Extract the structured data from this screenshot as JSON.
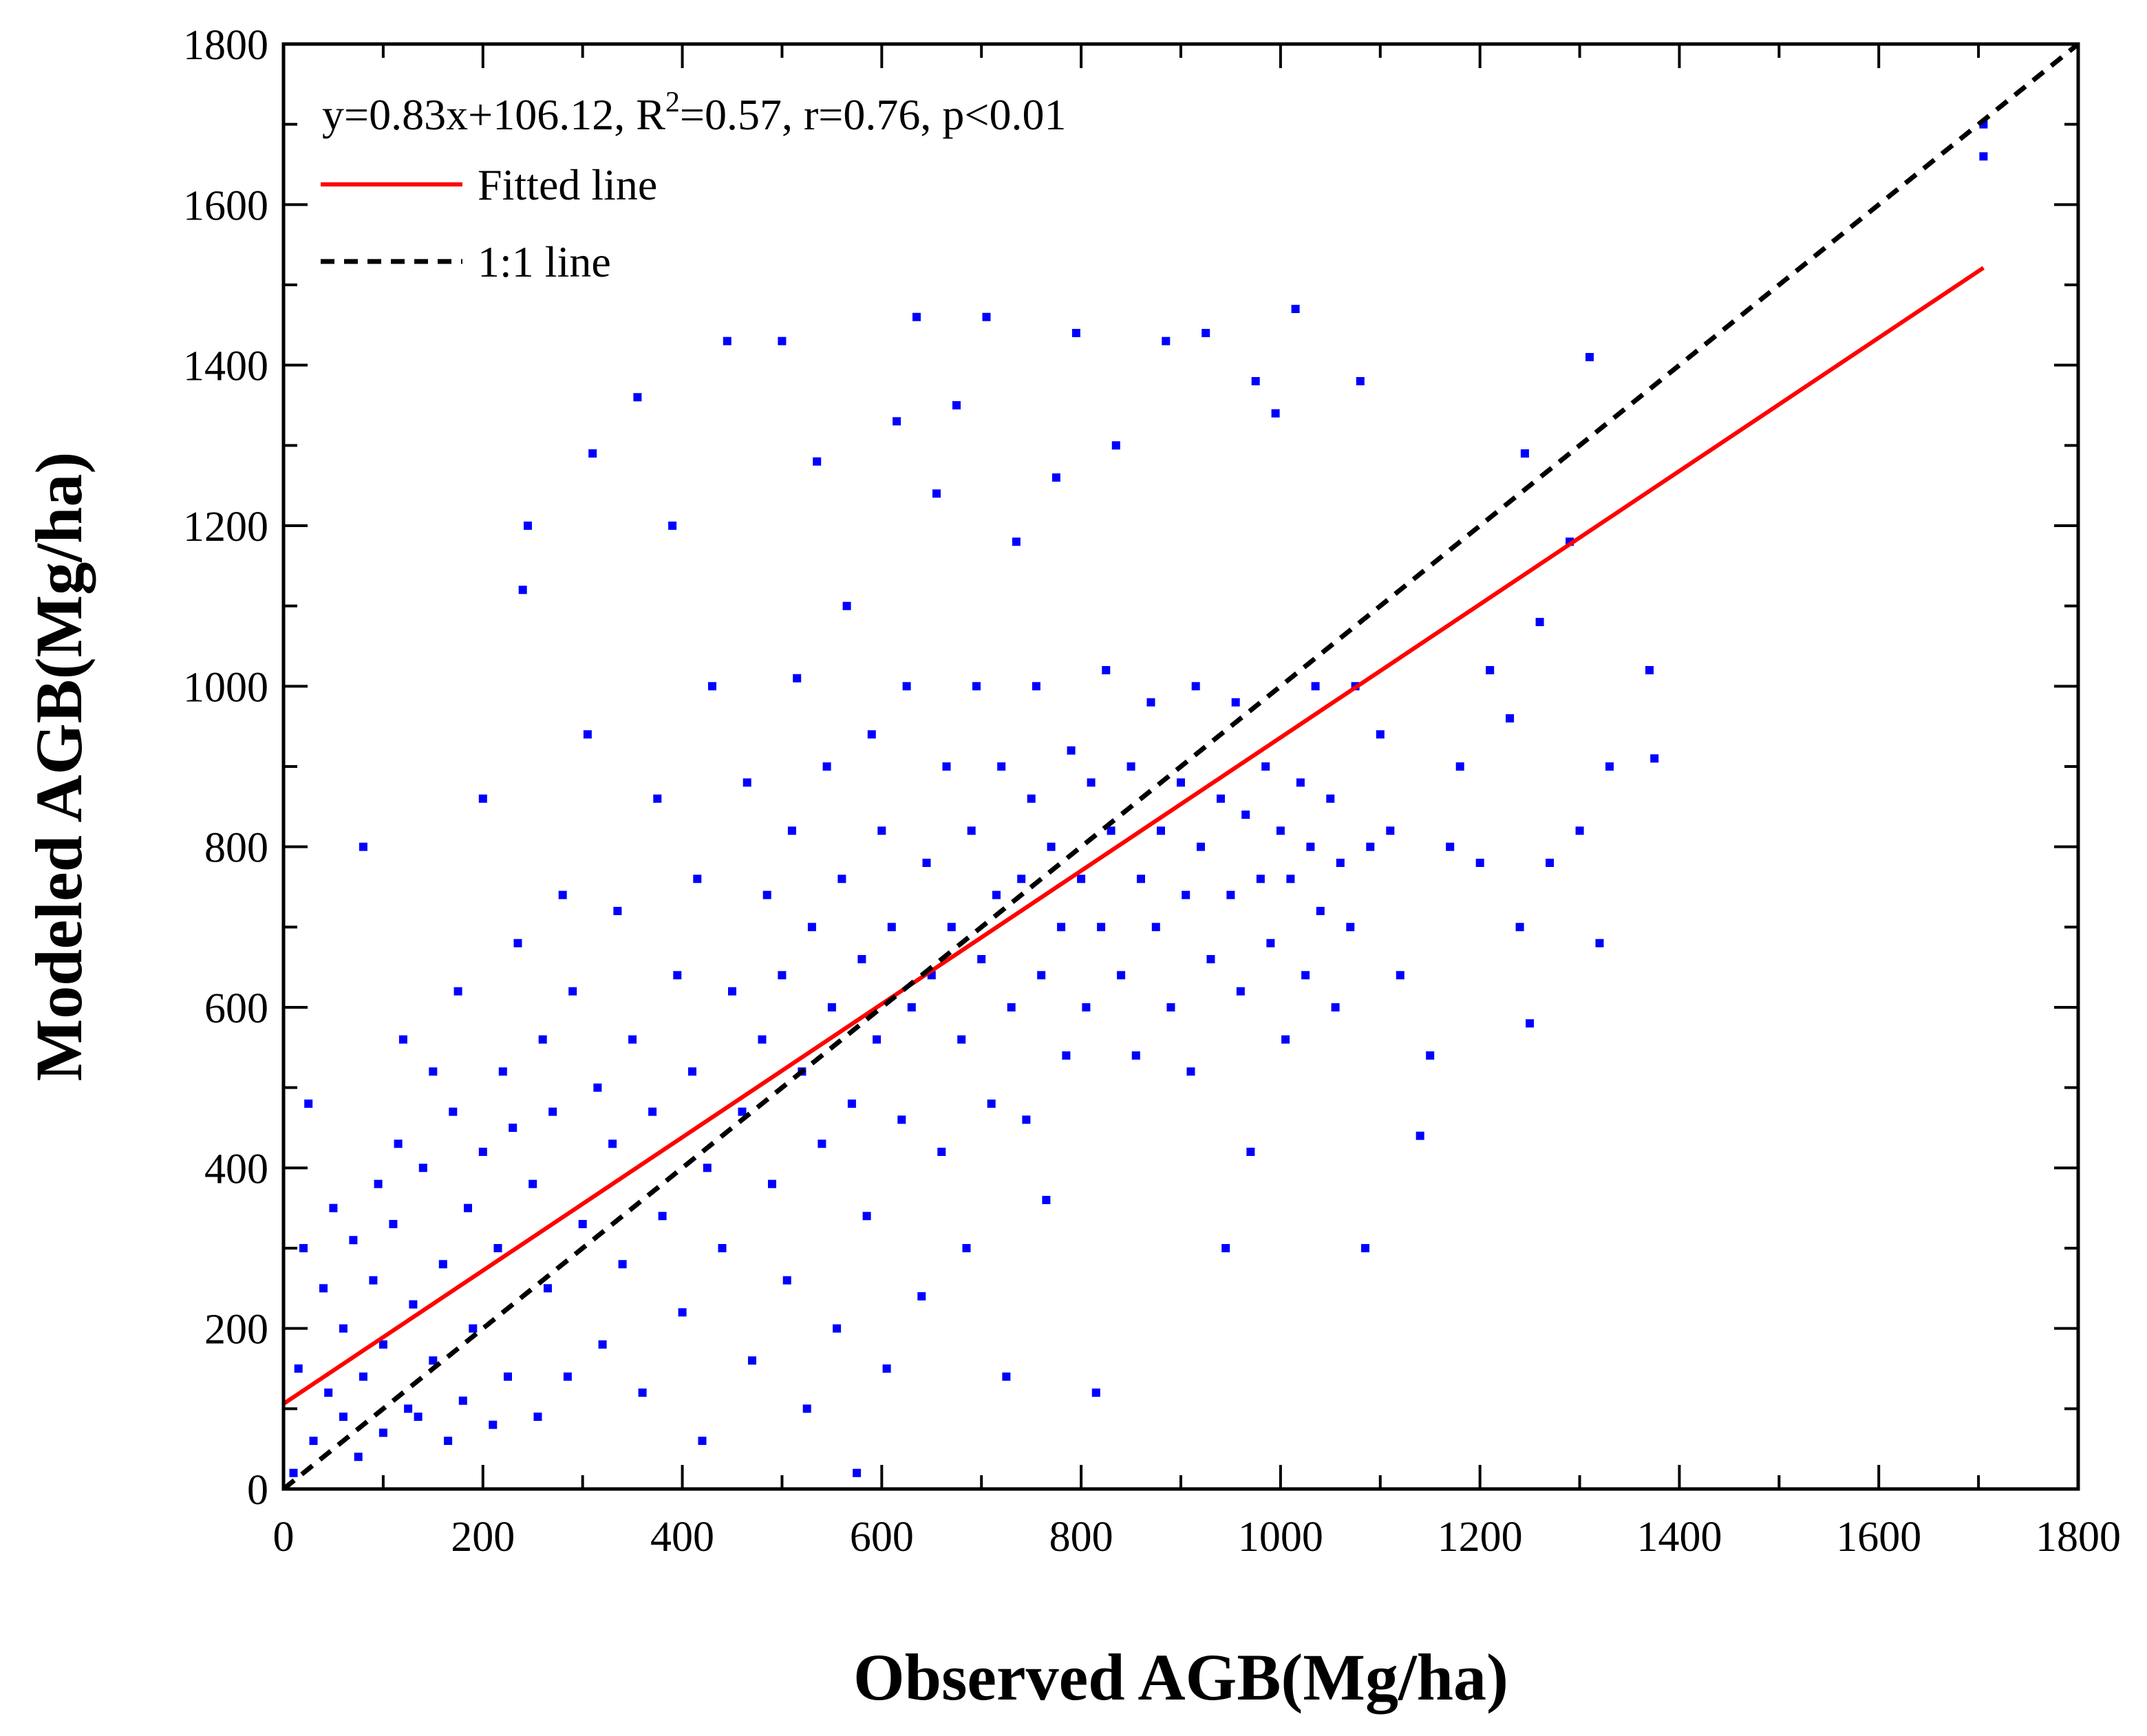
{
  "chart_data": {
    "type": "scatter",
    "xlabel": "Observed AGB(Mg/ha)",
    "ylabel": "Modeled AGB(Mg/ha)",
    "xlim": [
      0,
      1800
    ],
    "ylim": [
      0,
      1800
    ],
    "x_ticks": [
      "0",
      "200",
      "400",
      "600",
      "800",
      "1000",
      "1200",
      "1400",
      "1600",
      "1800"
    ],
    "y_ticks": [
      "0",
      "200",
      "400",
      "600",
      "800",
      "1000",
      "1200",
      "1400",
      "1600",
      "1800"
    ],
    "annotation": {
      "prefix": "y=0.83x+106.12, R",
      "superscript": "2",
      "suffix": "=0.57, r=0.76, p<0.01"
    },
    "fit_line": {
      "name": "Fitted line",
      "slope": 0.83,
      "intercept": 106.12,
      "x_range": [
        0,
        1705
      ],
      "color": "#ff0000"
    },
    "identity_line": {
      "name": "1:1 line",
      "x_range": [
        0,
        1800
      ],
      "color": "#000000"
    },
    "point_color": "#0000ff",
    "legend_position": "top-left",
    "grid": false,
    "points": [
      [
        10,
        20
      ],
      [
        15,
        150
      ],
      [
        20,
        300
      ],
      [
        25,
        480
      ],
      [
        30,
        60
      ],
      [
        40,
        250
      ],
      [
        45,
        120
      ],
      [
        50,
        350
      ],
      [
        60,
        90
      ],
      [
        60,
        200
      ],
      [
        70,
        310
      ],
      [
        75,
        40
      ],
      [
        80,
        140
      ],
      [
        80,
        800
      ],
      [
        90,
        260
      ],
      [
        95,
        380
      ],
      [
        100,
        70
      ],
      [
        100,
        180
      ],
      [
        110,
        330
      ],
      [
        115,
        430
      ],
      [
        120,
        560
      ],
      [
        125,
        100
      ],
      [
        130,
        230
      ],
      [
        135,
        90
      ],
      [
        140,
        400
      ],
      [
        150,
        160
      ],
      [
        150,
        520
      ],
      [
        160,
        280
      ],
      [
        165,
        60
      ],
      [
        170,
        470
      ],
      [
        175,
        620
      ],
      [
        180,
        110
      ],
      [
        185,
        350
      ],
      [
        190,
        200
      ],
      [
        200,
        420
      ],
      [
        200,
        860
      ],
      [
        210,
        80
      ],
      [
        215,
        300
      ],
      [
        220,
        520
      ],
      [
        225,
        140
      ],
      [
        230,
        450
      ],
      [
        235,
        680
      ],
      [
        240,
        1120
      ],
      [
        245,
        1200
      ],
      [
        250,
        380
      ],
      [
        255,
        90
      ],
      [
        260,
        560
      ],
      [
        265,
        250
      ],
      [
        270,
        470
      ],
      [
        280,
        740
      ],
      [
        285,
        140
      ],
      [
        290,
        620
      ],
      [
        300,
        330
      ],
      [
        305,
        940
      ],
      [
        310,
        1290
      ],
      [
        315,
        500
      ],
      [
        320,
        180
      ],
      [
        330,
        430
      ],
      [
        335,
        720
      ],
      [
        340,
        280
      ],
      [
        350,
        560
      ],
      [
        355,
        1360
      ],
      [
        360,
        120
      ],
      [
        370,
        470
      ],
      [
        375,
        860
      ],
      [
        380,
        340
      ],
      [
        390,
        1200
      ],
      [
        395,
        640
      ],
      [
        400,
        220
      ],
      [
        410,
        520
      ],
      [
        415,
        760
      ],
      [
        420,
        60
      ],
      [
        425,
        400
      ],
      [
        430,
        1000
      ],
      [
        440,
        300
      ],
      [
        445,
        1430
      ],
      [
        450,
        620
      ],
      [
        460,
        470
      ],
      [
        465,
        880
      ],
      [
        470,
        160
      ],
      [
        480,
        560
      ],
      [
        485,
        740
      ],
      [
        490,
        380
      ],
      [
        500,
        1430
      ],
      [
        500,
        640
      ],
      [
        505,
        260
      ],
      [
        510,
        820
      ],
      [
        515,
        1010
      ],
      [
        520,
        520
      ],
      [
        525,
        100
      ],
      [
        530,
        700
      ],
      [
        535,
        1280
      ],
      [
        540,
        430
      ],
      [
        545,
        900
      ],
      [
        550,
        600
      ],
      [
        555,
        200
      ],
      [
        560,
        760
      ],
      [
        565,
        1100
      ],
      [
        570,
        480
      ],
      [
        575,
        20
      ],
      [
        580,
        660
      ],
      [
        585,
        340
      ],
      [
        590,
        940
      ],
      [
        595,
        560
      ],
      [
        600,
        820
      ],
      [
        605,
        150
      ],
      [
        610,
        700
      ],
      [
        615,
        1330
      ],
      [
        620,
        460
      ],
      [
        625,
        1000
      ],
      [
        630,
        600
      ],
      [
        635,
        1460
      ],
      [
        640,
        240
      ],
      [
        645,
        780
      ],
      [
        650,
        640
      ],
      [
        655,
        1240
      ],
      [
        660,
        420
      ],
      [
        665,
        900
      ],
      [
        670,
        700
      ],
      [
        675,
        1350
      ],
      [
        680,
        560
      ],
      [
        685,
        300
      ],
      [
        690,
        820
      ],
      [
        695,
        1000
      ],
      [
        700,
        660
      ],
      [
        705,
        1460
      ],
      [
        710,
        480
      ],
      [
        715,
        740
      ],
      [
        720,
        900
      ],
      [
        725,
        140
      ],
      [
        730,
        600
      ],
      [
        735,
        1180
      ],
      [
        740,
        760
      ],
      [
        745,
        460
      ],
      [
        750,
        860
      ],
      [
        755,
        1000
      ],
      [
        760,
        640
      ],
      [
        765,
        360
      ],
      [
        770,
        800
      ],
      [
        775,
        1260
      ],
      [
        780,
        700
      ],
      [
        785,
        540
      ],
      [
        790,
        920
      ],
      [
        795,
        1440
      ],
      [
        800,
        760
      ],
      [
        805,
        600
      ],
      [
        810,
        880
      ],
      [
        815,
        120
      ],
      [
        820,
        700
      ],
      [
        825,
        1020
      ],
      [
        830,
        820
      ],
      [
        835,
        1300
      ],
      [
        840,
        640
      ],
      [
        850,
        900
      ],
      [
        855,
        540
      ],
      [
        860,
        760
      ],
      [
        870,
        980
      ],
      [
        875,
        700
      ],
      [
        880,
        820
      ],
      [
        885,
        1430
      ],
      [
        890,
        600
      ],
      [
        900,
        880
      ],
      [
        905,
        740
      ],
      [
        910,
        520
      ],
      [
        915,
        1000
      ],
      [
        920,
        800
      ],
      [
        925,
        1440
      ],
      [
        930,
        660
      ],
      [
        940,
        860
      ],
      [
        945,
        300
      ],
      [
        950,
        740
      ],
      [
        955,
        980
      ],
      [
        960,
        620
      ],
      [
        965,
        840
      ],
      [
        970,
        420
      ],
      [
        975,
        1380
      ],
      [
        980,
        760
      ],
      [
        985,
        900
      ],
      [
        990,
        680
      ],
      [
        995,
        1340
      ],
      [
        1000,
        820
      ],
      [
        1005,
        560
      ],
      [
        1010,
        760
      ],
      [
        1015,
        1470
      ],
      [
        1020,
        880
      ],
      [
        1025,
        640
      ],
      [
        1030,
        800
      ],
      [
        1035,
        1000
      ],
      [
        1040,
        720
      ],
      [
        1050,
        860
      ],
      [
        1055,
        600
      ],
      [
        1060,
        780
      ],
      [
        1070,
        700
      ],
      [
        1075,
        1000
      ],
      [
        1080,
        1380
      ],
      [
        1085,
        300
      ],
      [
        1090,
        800
      ],
      [
        1100,
        940
      ],
      [
        1110,
        820
      ],
      [
        1120,
        640
      ],
      [
        1140,
        440
      ],
      [
        1150,
        540
      ],
      [
        1170,
        800
      ],
      [
        1180,
        900
      ],
      [
        1200,
        780
      ],
      [
        1210,
        1020
      ],
      [
        1230,
        960
      ],
      [
        1240,
        700
      ],
      [
        1245,
        1290
      ],
      [
        1250,
        580
      ],
      [
        1260,
        1080
      ],
      [
        1270,
        780
      ],
      [
        1290,
        1180
      ],
      [
        1300,
        820
      ],
      [
        1310,
        1410
      ],
      [
        1320,
        680
      ],
      [
        1330,
        900
      ],
      [
        1370,
        1020
      ],
      [
        1375,
        910
      ],
      [
        1705,
        1660
      ],
      [
        1705,
        1700
      ]
    ]
  }
}
